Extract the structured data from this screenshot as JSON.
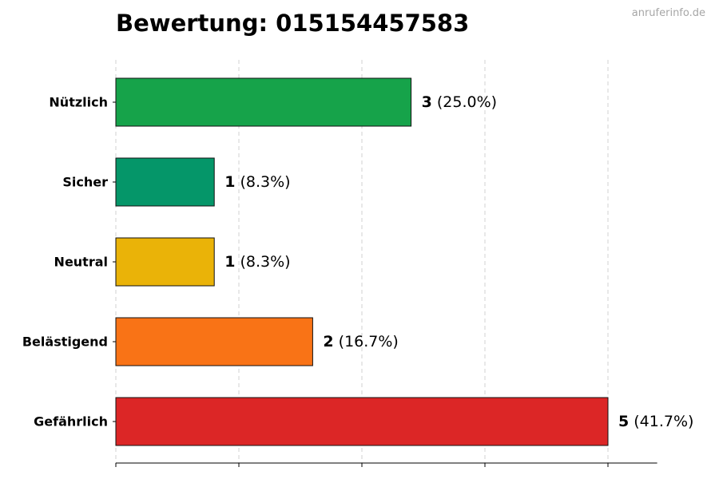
{
  "title": "Bewertung: 015154457583",
  "watermark": "anruferinfo.de",
  "chart_data": {
    "type": "bar",
    "orientation": "horizontal",
    "categories": [
      "Nützlich",
      "Sicher",
      "Neutral",
      "Belästigend",
      "Gefährlich"
    ],
    "values": [
      3,
      1,
      1,
      2,
      5
    ],
    "percent_labels": [
      "(25.0%)",
      "(8.3%)",
      "(8.3%)",
      "(16.7%)",
      "(41.7%)"
    ],
    "colors": [
      "#16a34a",
      "#059669",
      "#eab308",
      "#f97316",
      "#dc2626"
    ],
    "xlim": [
      0,
      5.5
    ],
    "x_grid_values": [
      0,
      1.25,
      2.5,
      3.75,
      5
    ],
    "grid": "vertical-dashed",
    "legend": "none"
  }
}
